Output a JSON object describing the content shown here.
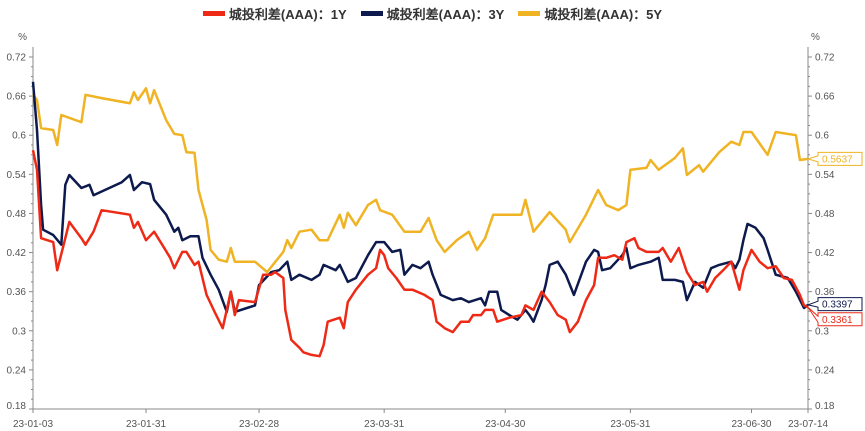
{
  "chart_data": {
    "type": "line",
    "title": "",
    "xlabel": "",
    "ylabel": "%",
    "y2label": "%",
    "ylim": [
      0.18,
      0.72
    ],
    "yticks": [
      "0.18",
      "0.24",
      "0.3",
      "0.36",
      "0.42",
      "0.48",
      "0.54",
      "0.6",
      "0.66",
      "0.72"
    ],
    "x_unit": "days since 2023-01-03",
    "xlim": [
      0,
      192
    ],
    "xticks": [
      {
        "day": 0,
        "label": "23-01-03"
      },
      {
        "day": 28,
        "label": "23-01-31"
      },
      {
        "day": 56,
        "label": "23-02-28"
      },
      {
        "day": 87,
        "label": "23-03-31"
      },
      {
        "day": 117,
        "label": "23-04-30"
      },
      {
        "day": 148,
        "label": "23-05-31"
      },
      {
        "day": 178,
        "label": "23-06-30"
      },
      {
        "day": 192,
        "label": "23-07-14"
      }
    ],
    "grid": false,
    "legend_position": "top-center",
    "series": [
      {
        "name": "城投利差(AAA)：1Y",
        "color": "#ee2a16",
        "last_label": "0.3361",
        "points": [
          [
            0,
            0.577
          ],
          [
            1,
            0.547
          ],
          [
            2,
            0.442
          ],
          [
            5,
            0.436
          ],
          [
            6,
            0.393
          ],
          [
            8,
            0.442
          ],
          [
            9,
            0.467
          ],
          [
            12,
            0.442
          ],
          [
            13,
            0.432
          ],
          [
            15,
            0.452
          ],
          [
            17,
            0.485
          ],
          [
            24,
            0.478
          ],
          [
            25,
            0.458
          ],
          [
            26,
            0.467
          ],
          [
            28,
            0.439
          ],
          [
            30,
            0.452
          ],
          [
            32,
            0.432
          ],
          [
            34,
            0.412
          ],
          [
            35,
            0.396
          ],
          [
            37,
            0.421
          ],
          [
            38,
            0.421
          ],
          [
            40,
            0.401
          ],
          [
            41,
            0.406
          ],
          [
            43,
            0.355
          ],
          [
            45,
            0.329
          ],
          [
            47,
            0.304
          ],
          [
            49,
            0.36
          ],
          [
            50,
            0.324
          ],
          [
            51,
            0.347
          ],
          [
            55,
            0.344
          ],
          [
            57,
            0.386
          ],
          [
            59,
            0.386
          ],
          [
            60,
            0.39
          ],
          [
            62,
            0.381
          ],
          [
            62.5,
            0.332
          ],
          [
            64,
            0.286
          ],
          [
            66,
            0.274
          ],
          [
            67,
            0.267
          ],
          [
            69,
            0.263
          ],
          [
            71,
            0.261
          ],
          [
            72,
            0.278
          ],
          [
            73,
            0.314
          ],
          [
            76,
            0.32
          ],
          [
            77,
            0.304
          ],
          [
            78,
            0.344
          ],
          [
            80,
            0.363
          ],
          [
            83,
            0.386
          ],
          [
            85,
            0.396
          ],
          [
            86,
            0.424
          ],
          [
            87,
            0.416
          ],
          [
            88,
            0.396
          ],
          [
            90,
            0.381
          ],
          [
            92,
            0.363
          ],
          [
            94,
            0.363
          ],
          [
            97,
            0.355
          ],
          [
            99,
            0.347
          ],
          [
            100,
            0.314
          ],
          [
            102,
            0.304
          ],
          [
            104,
            0.298
          ],
          [
            106,
            0.314
          ],
          [
            108,
            0.314
          ],
          [
            109,
            0.324
          ],
          [
            111,
            0.324
          ],
          [
            112,
            0.332
          ],
          [
            114,
            0.332
          ],
          [
            115,
            0.314
          ],
          [
            118,
            0.32
          ],
          [
            121,
            0.324
          ],
          [
            122,
            0.339
          ],
          [
            124,
            0.332
          ],
          [
            126,
            0.36
          ],
          [
            128,
            0.344
          ],
          [
            130,
            0.324
          ],
          [
            132,
            0.317
          ],
          [
            133,
            0.298
          ],
          [
            135,
            0.314
          ],
          [
            137,
            0.347
          ],
          [
            139,
            0.37
          ],
          [
            140,
            0.412
          ],
          [
            142,
            0.412
          ],
          [
            144,
            0.416
          ],
          [
            146,
            0.409
          ],
          [
            147,
            0.436
          ],
          [
            149,
            0.442
          ],
          [
            150,
            0.427
          ],
          [
            152,
            0.421
          ],
          [
            155,
            0.421
          ],
          [
            156,
            0.427
          ],
          [
            158,
            0.406
          ],
          [
            160,
            0.427
          ],
          [
            162,
            0.39
          ],
          [
            164,
            0.37
          ],
          [
            166,
            0.375
          ],
          [
            167,
            0.36
          ],
          [
            169,
            0.381
          ],
          [
            171,
            0.393
          ],
          [
            173,
            0.406
          ],
          [
            175,
            0.363
          ],
          [
            176,
            0.393
          ],
          [
            178,
            0.424
          ],
          [
            180,
            0.406
          ],
          [
            182,
            0.396
          ],
          [
            184,
            0.399
          ],
          [
            186,
            0.381
          ],
          [
            188,
            0.378
          ],
          [
            190,
            0.355
          ],
          [
            191,
            0.339
          ],
          [
            192,
            0.3361
          ]
        ]
      },
      {
        "name": "城投利差(AAA)：3Y",
        "color": "#0d1a4d",
        "last_label": "0.3397",
        "points": [
          [
            0,
            0.682
          ],
          [
            1,
            0.608
          ],
          [
            2,
            0.493
          ],
          [
            2.5,
            0.455
          ],
          [
            5,
            0.447
          ],
          [
            7,
            0.432
          ],
          [
            8,
            0.524
          ],
          [
            9,
            0.539
          ],
          [
            12,
            0.519
          ],
          [
            14,
            0.524
          ],
          [
            15,
            0.508
          ],
          [
            22,
            0.528
          ],
          [
            24,
            0.539
          ],
          [
            25,
            0.516
          ],
          [
            27,
            0.528
          ],
          [
            29,
            0.525
          ],
          [
            30,
            0.501
          ],
          [
            33,
            0.478
          ],
          [
            35,
            0.452
          ],
          [
            36,
            0.458
          ],
          [
            37,
            0.439
          ],
          [
            39,
            0.445
          ],
          [
            41,
            0.445
          ],
          [
            42,
            0.412
          ],
          [
            44,
            0.386
          ],
          [
            46,
            0.363
          ],
          [
            48,
            0.329
          ],
          [
            49,
            0.36
          ],
          [
            50,
            0.329
          ],
          [
            53,
            0.335
          ],
          [
            55,
            0.339
          ],
          [
            56,
            0.37
          ],
          [
            59,
            0.39
          ],
          [
            61,
            0.393
          ],
          [
            63,
            0.406
          ],
          [
            64,
            0.378
          ],
          [
            66,
            0.386
          ],
          [
            69,
            0.378
          ],
          [
            71,
            0.386
          ],
          [
            72,
            0.401
          ],
          [
            75,
            0.393
          ],
          [
            76,
            0.401
          ],
          [
            78,
            0.375
          ],
          [
            80,
            0.381
          ],
          [
            83,
            0.416
          ],
          [
            85,
            0.436
          ],
          [
            87,
            0.436
          ],
          [
            89,
            0.421
          ],
          [
            91,
            0.424
          ],
          [
            92,
            0.386
          ],
          [
            94,
            0.401
          ],
          [
            96,
            0.396
          ],
          [
            98,
            0.406
          ],
          [
            99,
            0.386
          ],
          [
            101,
            0.355
          ],
          [
            104,
            0.347
          ],
          [
            106,
            0.35
          ],
          [
            108,
            0.344
          ],
          [
            111,
            0.35
          ],
          [
            112,
            0.339
          ],
          [
            113,
            0.36
          ],
          [
            115,
            0.36
          ],
          [
            116,
            0.332
          ],
          [
            118,
            0.324
          ],
          [
            120,
            0.317
          ],
          [
            122,
            0.332
          ],
          [
            123,
            0.324
          ],
          [
            124,
            0.314
          ],
          [
            126,
            0.347
          ],
          [
            127,
            0.37
          ],
          [
            128,
            0.401
          ],
          [
            130,
            0.406
          ],
          [
            132,
            0.386
          ],
          [
            134,
            0.355
          ],
          [
            137,
            0.406
          ],
          [
            139,
            0.424
          ],
          [
            140,
            0.421
          ],
          [
            141,
            0.393
          ],
          [
            143,
            0.396
          ],
          [
            146,
            0.416
          ],
          [
            147,
            0.427
          ],
          [
            148,
            0.396
          ],
          [
            150,
            0.401
          ],
          [
            153,
            0.406
          ],
          [
            155,
            0.412
          ],
          [
            156,
            0.378
          ],
          [
            159,
            0.378
          ],
          [
            161,
            0.375
          ],
          [
            162,
            0.347
          ],
          [
            164,
            0.375
          ],
          [
            166,
            0.366
          ],
          [
            168,
            0.396
          ],
          [
            170,
            0.401
          ],
          [
            173,
            0.406
          ],
          [
            174,
            0.396
          ],
          [
            175,
            0.409
          ],
          [
            176,
            0.439
          ],
          [
            177,
            0.464
          ],
          [
            179,
            0.458
          ],
          [
            181,
            0.442
          ],
          [
            182,
            0.424
          ],
          [
            184,
            0.386
          ],
          [
            187,
            0.381
          ],
          [
            189,
            0.36
          ],
          [
            191,
            0.335
          ],
          [
            192,
            0.3397
          ]
        ]
      },
      {
        "name": "城投利差(AAA)：5Y",
        "color": "#f0b323",
        "last_label": "0.5637",
        "points": [
          [
            0,
            0.662
          ],
          [
            1,
            0.654
          ],
          [
            2,
            0.611
          ],
          [
            5,
            0.608
          ],
          [
            6,
            0.585
          ],
          [
            7,
            0.631
          ],
          [
            12,
            0.62
          ],
          [
            13,
            0.662
          ],
          [
            17,
            0.657
          ],
          [
            24,
            0.649
          ],
          [
            25,
            0.666
          ],
          [
            26,
            0.654
          ],
          [
            28,
            0.672
          ],
          [
            29,
            0.649
          ],
          [
            30,
            0.669
          ],
          [
            33,
            0.623
          ],
          [
            35,
            0.602
          ],
          [
            37,
            0.6
          ],
          [
            38,
            0.574
          ],
          [
            40,
            0.573
          ],
          [
            41,
            0.516
          ],
          [
            43,
            0.47
          ],
          [
            44,
            0.424
          ],
          [
            46,
            0.409
          ],
          [
            48,
            0.406
          ],
          [
            49,
            0.427
          ],
          [
            50,
            0.406
          ],
          [
            55,
            0.406
          ],
          [
            58,
            0.39
          ],
          [
            62,
            0.421
          ],
          [
            63,
            0.439
          ],
          [
            64,
            0.427
          ],
          [
            66,
            0.452
          ],
          [
            69,
            0.455
          ],
          [
            71,
            0.439
          ],
          [
            73,
            0.439
          ],
          [
            76,
            0.478
          ],
          [
            77,
            0.458
          ],
          [
            78,
            0.481
          ],
          [
            80,
            0.462
          ],
          [
            83,
            0.493
          ],
          [
            85,
            0.501
          ],
          [
            86,
            0.485
          ],
          [
            89,
            0.478
          ],
          [
            92,
            0.452
          ],
          [
            96,
            0.452
          ],
          [
            98,
            0.473
          ],
          [
            100,
            0.439
          ],
          [
            102,
            0.421
          ],
          [
            105,
            0.439
          ],
          [
            108,
            0.452
          ],
          [
            110,
            0.424
          ],
          [
            112,
            0.442
          ],
          [
            114,
            0.478
          ],
          [
            121,
            0.478
          ],
          [
            122,
            0.501
          ],
          [
            124,
            0.452
          ],
          [
            128,
            0.482
          ],
          [
            132,
            0.455
          ],
          [
            133,
            0.436
          ],
          [
            137,
            0.478
          ],
          [
            140,
            0.516
          ],
          [
            142,
            0.493
          ],
          [
            145,
            0.485
          ],
          [
            147,
            0.493
          ],
          [
            148,
            0.547
          ],
          [
            152,
            0.55
          ],
          [
            153,
            0.562
          ],
          [
            155,
            0.547
          ],
          [
            159,
            0.565
          ],
          [
            161,
            0.58
          ],
          [
            162,
            0.539
          ],
          [
            165,
            0.554
          ],
          [
            166,
            0.544
          ],
          [
            170,
            0.574
          ],
          [
            173,
            0.59
          ],
          [
            175,
            0.585
          ],
          [
            176,
            0.605
          ],
          [
            178,
            0.605
          ],
          [
            182,
            0.57
          ],
          [
            184,
            0.605
          ],
          [
            189,
            0.6
          ],
          [
            190,
            0.562
          ],
          [
            192,
            0.5637
          ]
        ]
      }
    ]
  }
}
